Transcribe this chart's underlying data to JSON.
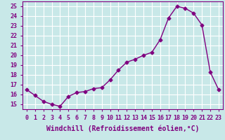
{
  "x": [
    0,
    1,
    2,
    3,
    4,
    5,
    6,
    7,
    8,
    9,
    10,
    11,
    12,
    13,
    14,
    15,
    16,
    17,
    18,
    19,
    20,
    21,
    22,
    23
  ],
  "y": [
    16.5,
    15.9,
    15.3,
    15.0,
    14.8,
    15.8,
    16.2,
    16.3,
    16.6,
    16.7,
    17.5,
    18.5,
    19.3,
    19.6,
    20.0,
    20.3,
    21.6,
    23.8,
    25.0,
    24.8,
    24.3,
    23.1,
    18.3,
    16.5
  ],
  "color": "#800080",
  "bg_color": "#c8e8e8",
  "grid_color": "#a0c8c8",
  "xlabel": "Windchill (Refroidissement éolien,°C)",
  "ylim": [
    14.5,
    25.5
  ],
  "xlim": [
    -0.5,
    23.5
  ],
  "yticks": [
    15,
    16,
    17,
    18,
    19,
    20,
    21,
    22,
    23,
    24,
    25
  ],
  "xticks": [
    0,
    1,
    2,
    3,
    4,
    5,
    6,
    7,
    8,
    9,
    10,
    11,
    12,
    13,
    14,
    15,
    16,
    17,
    18,
    19,
    20,
    21,
    22,
    23
  ],
  "marker": "D",
  "marker_size": 2.5,
  "line_width": 1.0,
  "xlabel_fontsize": 7.0,
  "tick_fontsize": 6.0,
  "spine_color": "#800080"
}
